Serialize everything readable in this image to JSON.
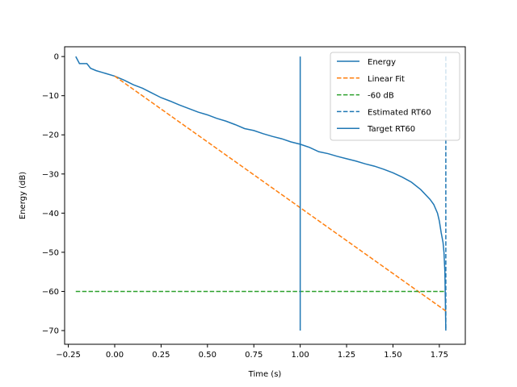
{
  "chart_data": {
    "type": "line",
    "title": "",
    "xlabel": "Time (s)",
    "ylabel": "Energy (dB)",
    "xlim": [
      -0.27,
      1.89
    ],
    "ylim": [
      -73.5,
      2.5
    ],
    "xticks": [
      -0.25,
      0.0,
      0.25,
      0.5,
      0.75,
      1.0,
      1.25,
      1.5,
      1.75
    ],
    "xtick_labels": [
      "−0.25",
      "0.00",
      "0.25",
      "0.50",
      "0.75",
      "1.00",
      "1.25",
      "1.50",
      "1.75"
    ],
    "yticks": [
      0,
      -10,
      -20,
      -30,
      -40,
      -50,
      -60,
      -70
    ],
    "ytick_labels": [
      "0",
      "−10",
      "−20",
      "−30",
      "−40",
      "−50",
      "−60",
      "−70"
    ],
    "grid": false,
    "legend_position": "top-right",
    "series": [
      {
        "name": "Energy",
        "color": "#1f77b4",
        "style": "solid",
        "x": [
          -0.21,
          -0.19,
          -0.15,
          -0.13,
          -0.1,
          -0.05,
          0.0,
          0.05,
          0.1,
          0.15,
          0.2,
          0.25,
          0.3,
          0.35,
          0.4,
          0.45,
          0.5,
          0.55,
          0.6,
          0.65,
          0.7,
          0.75,
          0.8,
          0.85,
          0.9,
          0.95,
          1.0,
          1.05,
          1.1,
          1.15,
          1.2,
          1.25,
          1.3,
          1.35,
          1.4,
          1.45,
          1.5,
          1.55,
          1.6,
          1.65,
          1.7,
          1.72,
          1.74,
          1.75,
          1.76,
          1.77,
          1.775,
          1.78,
          1.785
        ],
        "y": [
          0.0,
          -1.8,
          -1.8,
          -3.0,
          -3.6,
          -4.3,
          -5.0,
          -6.0,
          -7.2,
          -8.1,
          -9.3,
          -10.5,
          -11.4,
          -12.4,
          -13.3,
          -14.2,
          -14.9,
          -15.8,
          -16.5,
          -17.4,
          -18.4,
          -18.9,
          -19.7,
          -20.4,
          -21.0,
          -21.8,
          -22.4,
          -23.2,
          -24.3,
          -24.8,
          -25.5,
          -26.1,
          -26.7,
          -27.4,
          -28.0,
          -28.8,
          -29.7,
          -30.8,
          -32.1,
          -34.0,
          -36.5,
          -37.8,
          -40.0,
          -42.0,
          -45.0,
          -47.5,
          -50.0,
          -55.0,
          -70.0
        ]
      },
      {
        "name": "Linear Fit",
        "color": "#ff7f0e",
        "style": "dashed",
        "x": [
          0.0,
          1.785
        ],
        "y": [
          -5.0,
          -65.0
        ]
      },
      {
        "name": "-60 dB",
        "color": "#2ca02c",
        "style": "dashed",
        "x": [
          -0.21,
          1.785
        ],
        "y": [
          -60,
          -60
        ]
      },
      {
        "name": "Estimated RT60",
        "color": "#1f77b4",
        "style": "dashed",
        "x": [
          1.785,
          1.785
        ],
        "y": [
          0,
          -70
        ]
      },
      {
        "name": "Target RT60",
        "color": "#1f77b4",
        "style": "solid",
        "x": [
          1.0,
          1.0
        ],
        "y": [
          0,
          -70
        ]
      }
    ]
  }
}
